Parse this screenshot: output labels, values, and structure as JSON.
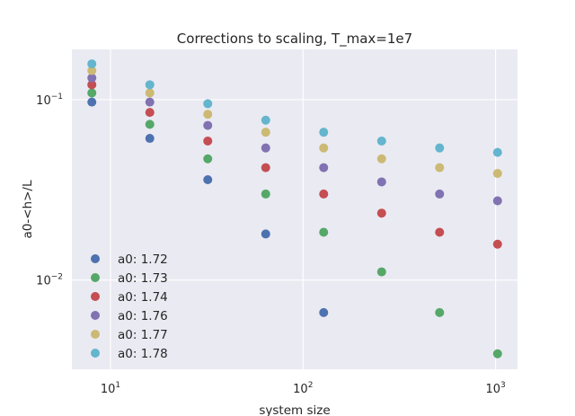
{
  "chart_data": {
    "type": "scatter",
    "title": "Corrections to scaling, T_max=1e7",
    "xlabel": "system size",
    "ylabel": "a0-<h>/L",
    "xscale": "log",
    "yscale": "log",
    "xlim": [
      6.3,
      1300
    ],
    "ylim": [
      0.0032,
      0.19
    ],
    "grid": true,
    "legend_position": "lower-left",
    "x_ticks": [
      {
        "value": 10,
        "base": "10",
        "exp": "1"
      },
      {
        "value": 100,
        "base": "10",
        "exp": "2"
      },
      {
        "value": 1000,
        "base": "10",
        "exp": "3"
      }
    ],
    "y_ticks": [
      {
        "value": 0.01,
        "base": "10",
        "exp": "−2"
      },
      {
        "value": 0.1,
        "base": "10",
        "exp": "−1"
      }
    ],
    "series": [
      {
        "name": "a0: 1.72",
        "color": "#4c72b0",
        "x": [
          8,
          16,
          32,
          64,
          128,
          512,
          1024
        ],
        "y": [
          0.097,
          0.061,
          0.036,
          0.018,
          0.0066,
          null,
          null
        ]
      },
      {
        "name": "a0: 1.73",
        "color": "#55a868",
        "x": [
          8,
          16,
          32,
          64,
          128,
          256,
          512,
          1024
        ],
        "y": [
          0.109,
          0.073,
          0.047,
          0.03,
          0.0184,
          0.0111,
          0.0066,
          0.0039
        ]
      },
      {
        "name": "a0: 1.74",
        "color": "#c44e52",
        "x": [
          8,
          16,
          32,
          64,
          128,
          256,
          512,
          1024
        ],
        "y": [
          0.121,
          0.085,
          0.059,
          0.042,
          0.03,
          0.0235,
          0.0184,
          0.0158
        ]
      },
      {
        "name": "a0: 1.76",
        "color": "#8172b2",
        "x": [
          8,
          16,
          32,
          64,
          128,
          256,
          512,
          1024
        ],
        "y": [
          0.132,
          0.097,
          0.072,
          0.054,
          0.042,
          0.035,
          0.03,
          0.0275
        ]
      },
      {
        "name": "a0: 1.77",
        "color": "#ccb974",
        "x": [
          8,
          16,
          32,
          64,
          128,
          256,
          512,
          1024
        ],
        "y": [
          0.145,
          0.109,
          0.083,
          0.066,
          0.054,
          0.047,
          0.042,
          0.039
        ]
      },
      {
        "name": "a0: 1.78",
        "color": "#64b5cd",
        "x": [
          8,
          16,
          32,
          64,
          128,
          256,
          512,
          1024
        ],
        "y": [
          0.158,
          0.121,
          0.095,
          0.077,
          0.066,
          0.059,
          0.054,
          0.051
        ]
      }
    ]
  }
}
